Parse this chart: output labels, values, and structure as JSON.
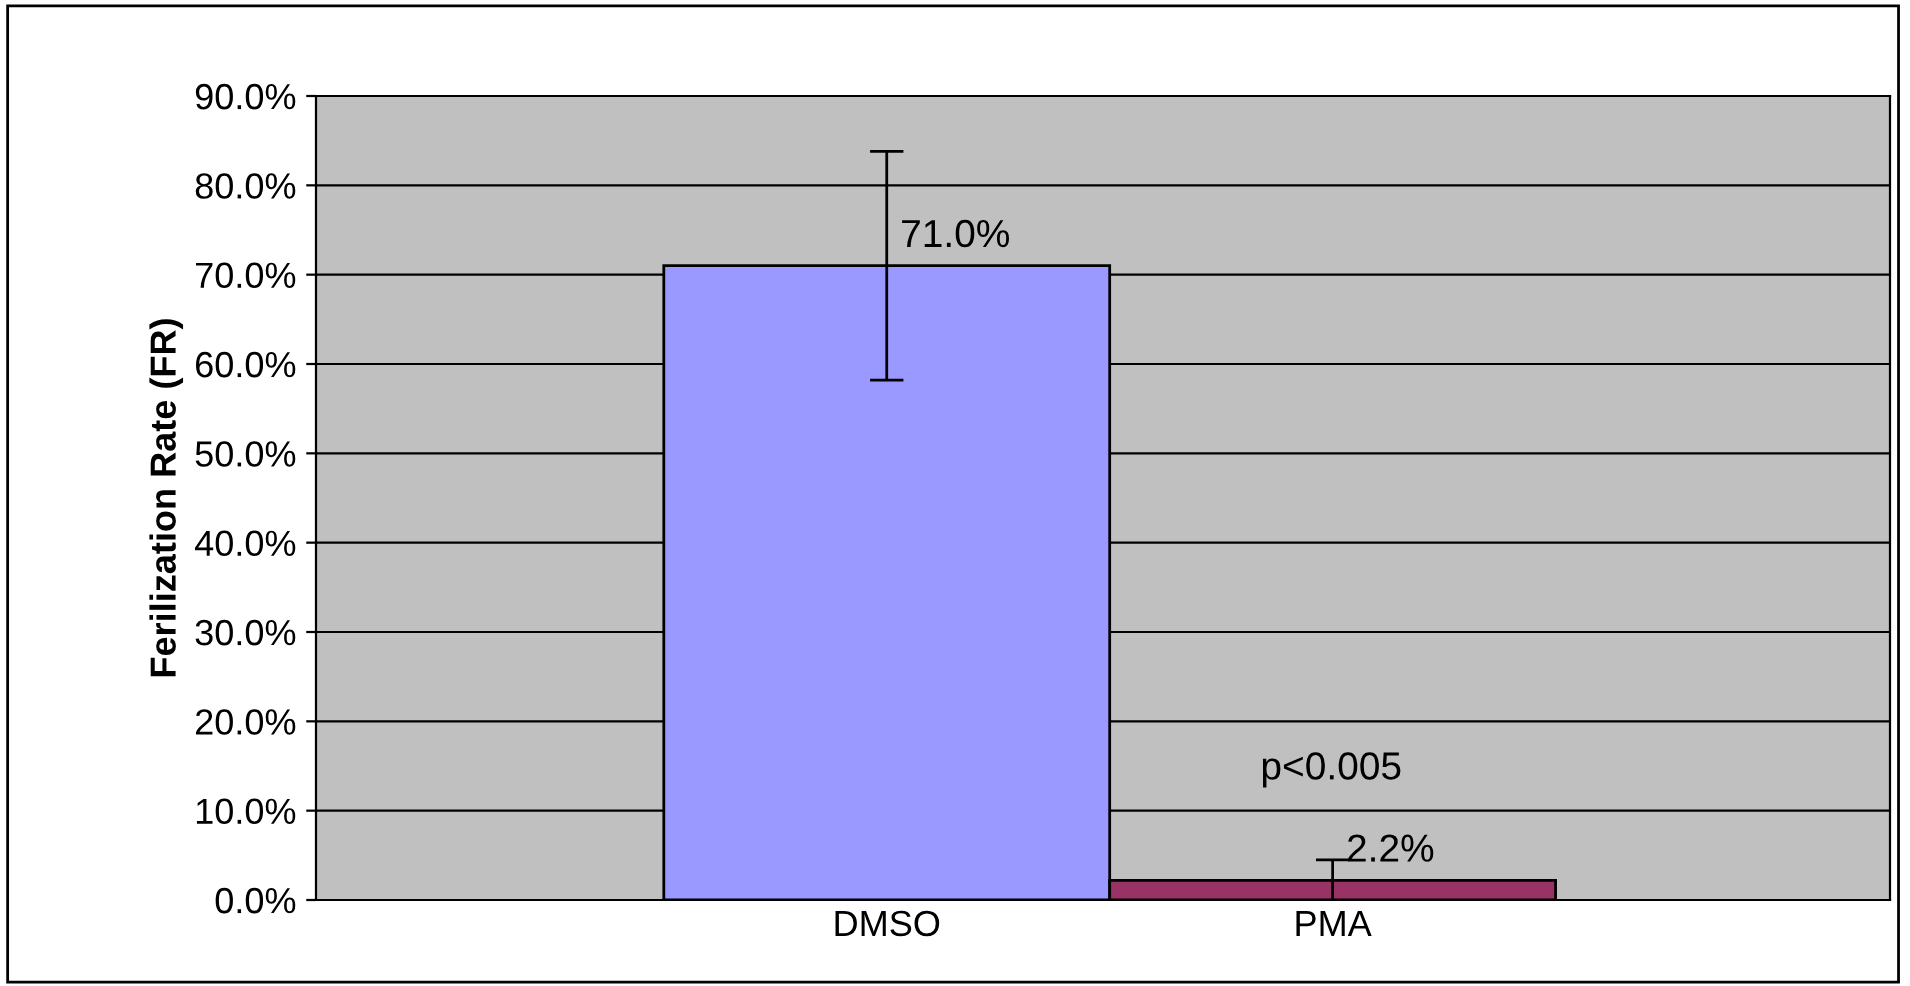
{
  "chart_data": {
    "type": "bar",
    "ylabel": "Ferilization Rate (FR)",
    "categories": [
      "DMSO",
      "PMA"
    ],
    "values": [
      71.0,
      2.2
    ],
    "colors": [
      "#9999ff",
      "#993366"
    ],
    "errors": [
      12.8,
      2.3
    ],
    "value_labels": [
      "71.0%",
      "2.2%"
    ],
    "annotations": [
      "p<0.005"
    ],
    "ylim": [
      0,
      90
    ],
    "yticks": [
      {
        "value": 0,
        "label": "0.0%"
      },
      {
        "value": 10,
        "label": "10.0%"
      },
      {
        "value": 20,
        "label": "20.0%"
      },
      {
        "value": 30,
        "label": "30.0%"
      },
      {
        "value": 40,
        "label": "40.0%"
      },
      {
        "value": 50,
        "label": "50.0%"
      },
      {
        "value": 60,
        "label": "60.0%"
      },
      {
        "value": 70,
        "label": "70.0%"
      },
      {
        "value": 80,
        "label": "80.0%"
      },
      {
        "value": 90,
        "label": "90.0%"
      }
    ],
    "grid": "y",
    "legend": false
  }
}
